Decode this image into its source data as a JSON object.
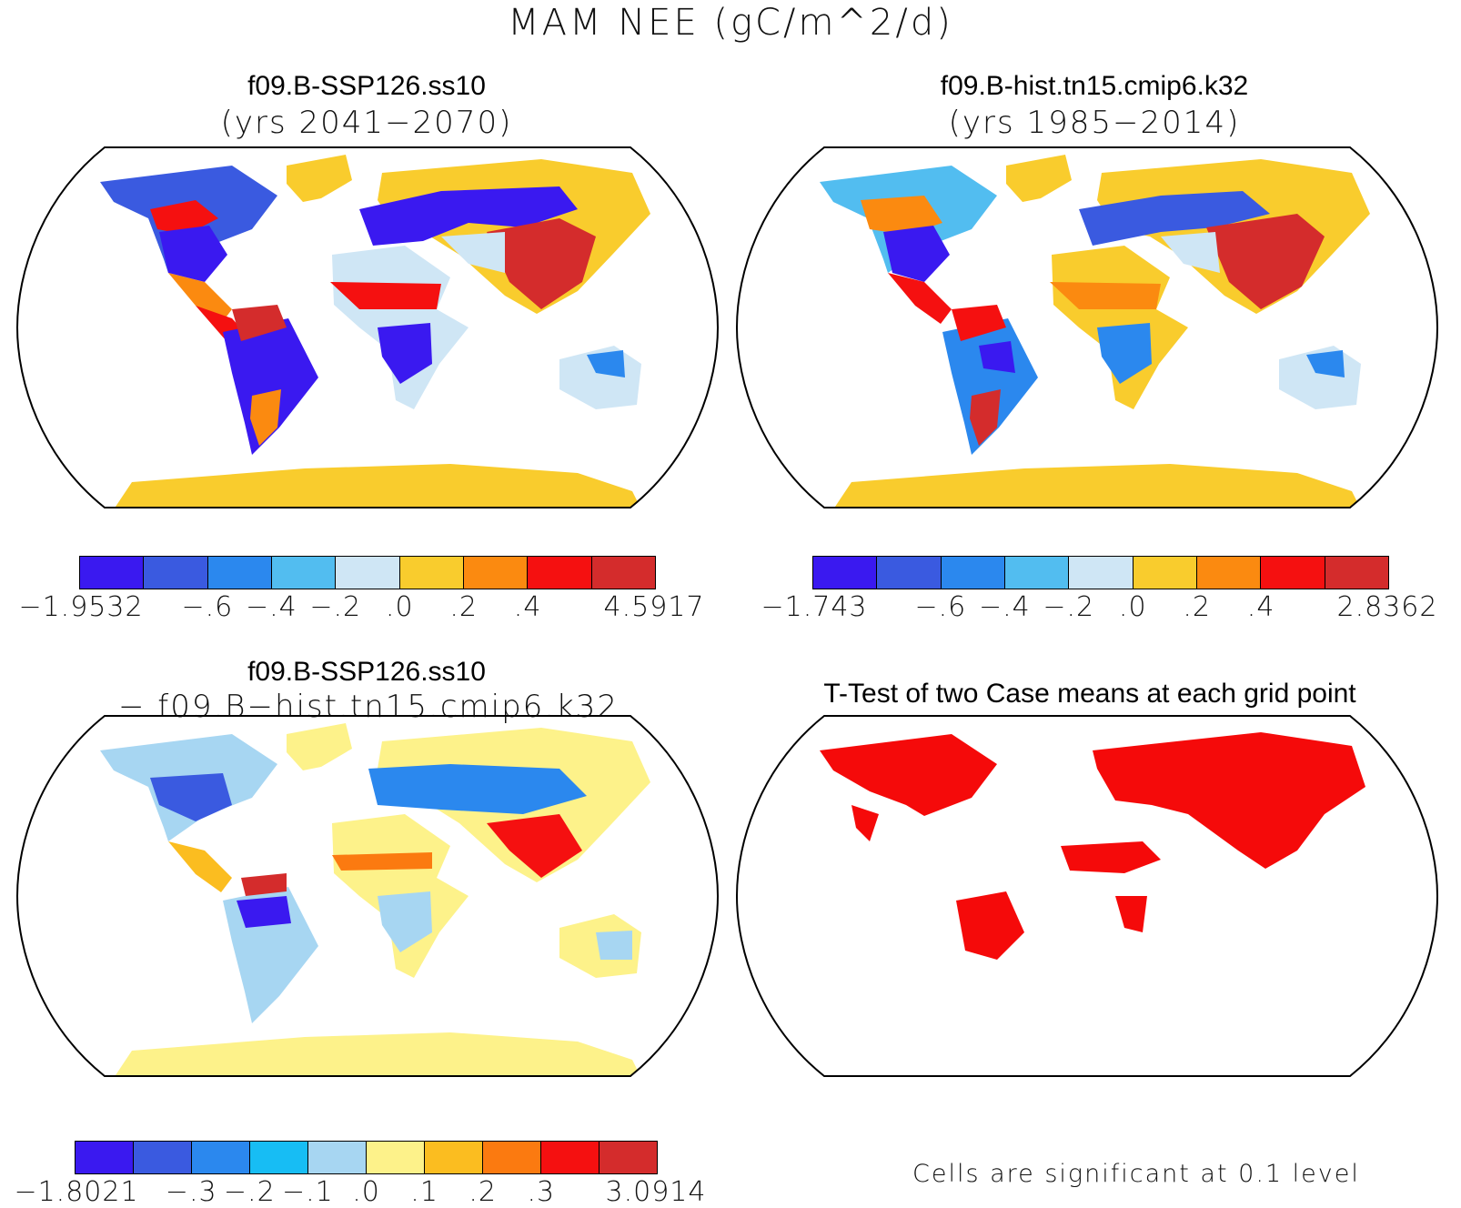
{
  "title": "MAM NEE (gC/m^2/d)",
  "panels": [
    {
      "title": "f09.B-SSP126.ss10",
      "subtitle": "(yrs 2041−2070)",
      "colorbar": {
        "colors": [
          "#3a19f0",
          "#3a5ae0",
          "#2b88ee",
          "#52bdf0",
          "#cfe6f5",
          "#f9cc2d",
          "#fb8a10",
          "#f51010",
          "#d42c2c"
        ],
        "ticks": [
          "−1.9532",
          "−.6",
          "−.4",
          "−.2",
          ".0",
          ".2",
          ".4",
          "4.5917"
        ]
      }
    },
    {
      "title": "f09.B-hist.tn15.cmip6.k32",
      "subtitle": "(yrs 1985−2014)",
      "colorbar": {
        "colors": [
          "#3a19f0",
          "#3a5ae0",
          "#2b88ee",
          "#52bdf0",
          "#cfe6f5",
          "#f9cc2d",
          "#fb8a10",
          "#f51010",
          "#d42c2c"
        ],
        "ticks": [
          "−1.743",
          "−.6",
          "−.4",
          "−.2",
          ".0",
          ".2",
          ".4",
          "2.8362"
        ]
      }
    },
    {
      "title": "f09.B-SSP126.ss10",
      "subtitle": "− f09.B−hist.tn15.cmip6.k32",
      "colorbar": {
        "colors": [
          "#3a19f0",
          "#3a5ae0",
          "#2b88ee",
          "#17bdf4",
          "#a7d6f2",
          "#fdf28a",
          "#fbbd20",
          "#fb7a10",
          "#f51010",
          "#d42c2c"
        ],
        "ticks": [
          "−1.8021",
          "−.3",
          "−.2",
          "−.1",
          ".0",
          ".1",
          ".2",
          ".3",
          "3.0914"
        ]
      }
    },
    {
      "title": "T-Test of two Case means at each grid point",
      "note": "Cells are significant at 0.1 level",
      "significance_color": "#f50a0a"
    }
  ]
}
